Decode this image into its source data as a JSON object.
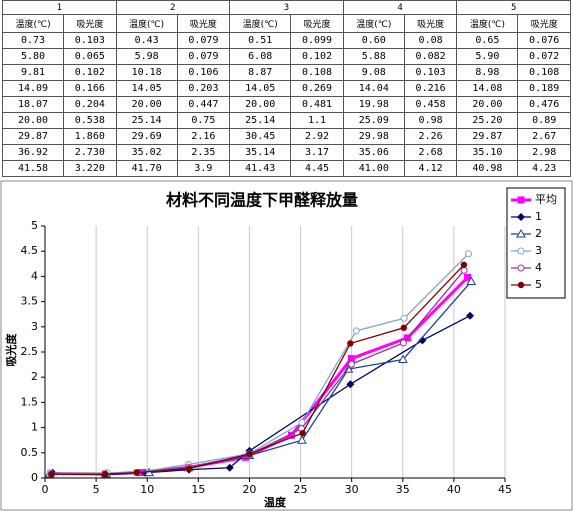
{
  "table": {
    "groups": [
      "1",
      "2",
      "3",
      "4",
      "5"
    ],
    "columns": [
      "温度(℃)",
      "吸光度",
      "温度(℃)",
      "吸光度",
      "温度(℃)",
      "吸光度",
      "温度(℃)",
      "吸光度",
      "温度(℃)",
      "吸光度"
    ],
    "rows": [
      [
        "0.73",
        "0.103",
        "0.43",
        "0.079",
        "0.51",
        "0.099",
        "0.60",
        "0.08",
        "0.65",
        "0.076"
      ],
      [
        "5.80",
        "0.065",
        "5.98",
        "0.079",
        "6.08",
        "0.102",
        "5.88",
        "0.082",
        "5.90",
        "0.072"
      ],
      [
        "9.81",
        "0.102",
        "10.18",
        "0.106",
        "8.87",
        "0.108",
        "9.08",
        "0.103",
        "8.98",
        "0.108"
      ],
      [
        "14.09",
        "0.166",
        "14.05",
        "0.203",
        "14.05",
        "0.269",
        "14.04",
        "0.216",
        "14.08",
        "0.189"
      ],
      [
        "18.07",
        "0.204",
        "20.00",
        "0.447",
        "20.00",
        "0.481",
        "19.98",
        "0.458",
        "20.00",
        "0.476"
      ],
      [
        "20.00",
        "0.538",
        "25.14",
        "0.75",
        "25.14",
        "1.1",
        "25.09",
        "0.98",
        "25.20",
        "0.89"
      ],
      [
        "29.87",
        "1.860",
        "29.69",
        "2.16",
        "30.45",
        "2.92",
        "29.98",
        "2.26",
        "29.87",
        "2.67"
      ],
      [
        "36.92",
        "2.730",
        "35.02",
        "2.35",
        "35.14",
        "3.17",
        "35.06",
        "2.68",
        "35.10",
        "2.98"
      ],
      [
        "41.58",
        "3.220",
        "41.70",
        "3.9",
        "41.43",
        "4.45",
        "41.00",
        "4.12",
        "40.98",
        "4.23"
      ]
    ]
  },
  "chart_data": {
    "type": "line",
    "title": "材料不同温度下甲醛释放量",
    "x_label": "温度",
    "y_label": "吸光度",
    "xlim": [
      0,
      45
    ],
    "xticks": [
      0,
      5,
      10,
      15,
      20,
      25,
      30,
      35,
      40,
      45
    ],
    "ylim": [
      0,
      5
    ],
    "yticks": [
      0,
      0.5,
      1,
      1.5,
      2,
      2.5,
      3,
      3.5,
      4,
      4.5,
      5
    ],
    "grid": "x",
    "legend": "right",
    "series": [
      {
        "name": "平均",
        "color": "#ff00ff",
        "marker": "square",
        "x": [
          0.58,
          5.93,
          9.38,
          14.06,
          19.61,
          24.11,
          29.97,
          35.45,
          41.34
        ],
        "values": [
          0.09,
          0.08,
          0.11,
          0.21,
          0.41,
          0.85,
          2.37,
          2.78,
          3.98
        ]
      },
      {
        "name": "1",
        "color": "#000066",
        "marker": "diamond",
        "x": [
          0.73,
          5.8,
          9.81,
          14.09,
          18.07,
          20,
          29.87,
          36.92,
          41.58
        ],
        "values": [
          0.103,
          0.065,
          0.102,
          0.166,
          0.204,
          0.538,
          1.86,
          2.73,
          3.22
        ]
      },
      {
        "name": "2",
        "color": "#1f3fa0",
        "marker": "triangle",
        "x": [
          0.43,
          5.98,
          10.18,
          14.05,
          20,
          25.14,
          29.69,
          35.02,
          41.7
        ],
        "values": [
          0.079,
          0.079,
          0.106,
          0.203,
          0.447,
          0.75,
          2.16,
          2.35,
          3.9
        ]
      },
      {
        "name": "3",
        "color": "#7fa8c8",
        "marker": "circle-open",
        "x": [
          0.51,
          6.08,
          8.87,
          14.05,
          20,
          25.14,
          30.45,
          35.14,
          41.43
        ],
        "values": [
          0.099,
          0.102,
          0.108,
          0.269,
          0.481,
          1.1,
          2.92,
          3.17,
          4.45
        ]
      },
      {
        "name": "4",
        "color": "#993399",
        "marker": "circle-open",
        "x": [
          0.6,
          5.88,
          9.08,
          14.04,
          19.98,
          25.09,
          29.98,
          35.06,
          41
        ],
        "values": [
          0.08,
          0.082,
          0.103,
          0.216,
          0.458,
          0.98,
          2.26,
          2.68,
          4.12
        ]
      },
      {
        "name": "5",
        "color": "#800000",
        "marker": "circle",
        "x": [
          0.65,
          5.9,
          8.98,
          14.08,
          20,
          25.2,
          29.87,
          35.1,
          40.98
        ],
        "values": [
          0.076,
          0.072,
          0.108,
          0.189,
          0.476,
          0.89,
          2.67,
          2.98,
          4.23
        ]
      }
    ]
  }
}
